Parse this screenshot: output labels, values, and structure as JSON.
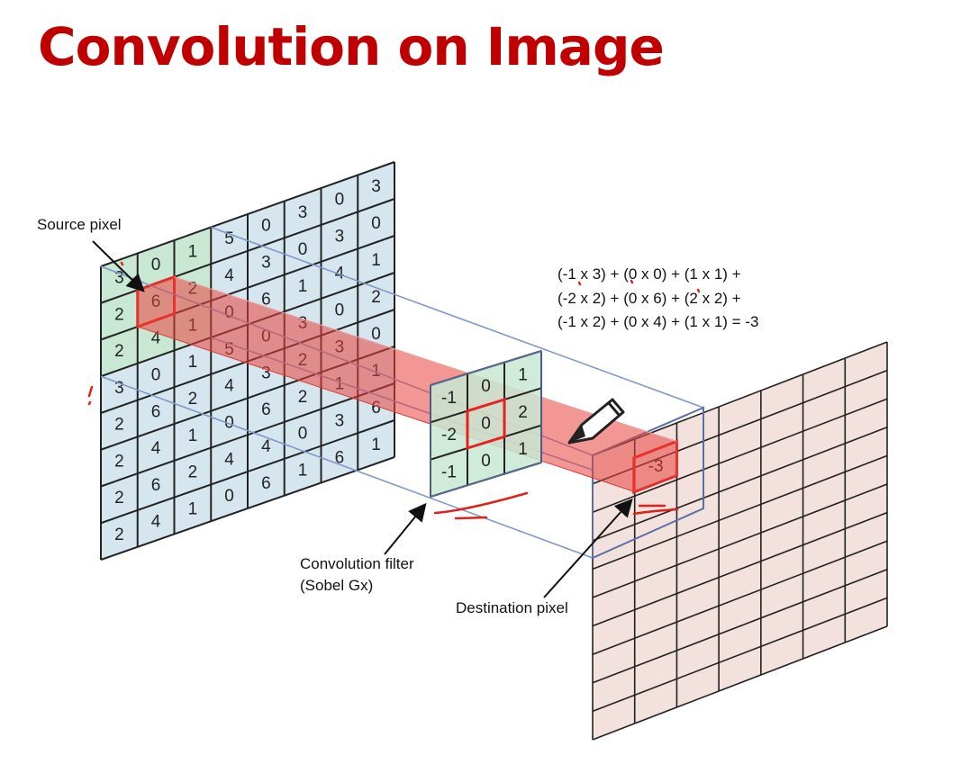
{
  "title": "Convolution on Image",
  "source_grid": {
    "values": [
      [
        "3",
        "0",
        "1",
        "5",
        "0",
        "3",
        "0",
        "3"
      ],
      [
        "2",
        "6",
        "2",
        "4",
        "3",
        "0",
        "3",
        "0"
      ],
      [
        "2",
        "4",
        "1",
        "0",
        "6",
        "1",
        "4",
        "1"
      ],
      [
        "3",
        "0",
        "1",
        "5",
        "0",
        "3",
        "0",
        "2"
      ],
      [
        "2",
        "6",
        "2",
        "4",
        "3",
        "2",
        "3",
        "0"
      ],
      [
        "2",
        "4",
        "1",
        "0",
        "6",
        "2",
        "1",
        "1"
      ],
      [
        "2",
        "6",
        "2",
        "4",
        "4",
        "0",
        "3",
        "6"
      ],
      [
        "2",
        "4",
        "1",
        "0",
        "6",
        "1",
        "6",
        "1"
      ]
    ],
    "colors": {
      "cell": "#d6e6ef",
      "highlight": "#c9e8d4",
      "line": "#222222"
    }
  },
  "filter_grid": {
    "values": [
      [
        "-1",
        "0",
        "1"
      ],
      [
        "-2",
        "0",
        "2"
      ],
      [
        "-1",
        "0",
        "1"
      ]
    ]
  },
  "destination": {
    "value": "-3",
    "rows": 10,
    "cols": 7,
    "color": "#f2e1dc"
  },
  "labels": {
    "source_pixel": "Source pixel",
    "filter_line1": "Convolution filter",
    "filter_line2": "(Sobel Gx)",
    "destination_pixel": "Destination pixel"
  },
  "formula": [
    "(-1 x 3) + (0 x 0) + (1 x 1) +",
    "(-2 x 2) + (0 x 6) + (2 x 2) +",
    "(-1 x 2) + (0 x 4) + (1 x 1)  = -3"
  ],
  "colors": {
    "title": "#c00000",
    "highlight_red": "#e8211d",
    "beam": "#e9413d",
    "projection_line": "#7f98cc"
  }
}
